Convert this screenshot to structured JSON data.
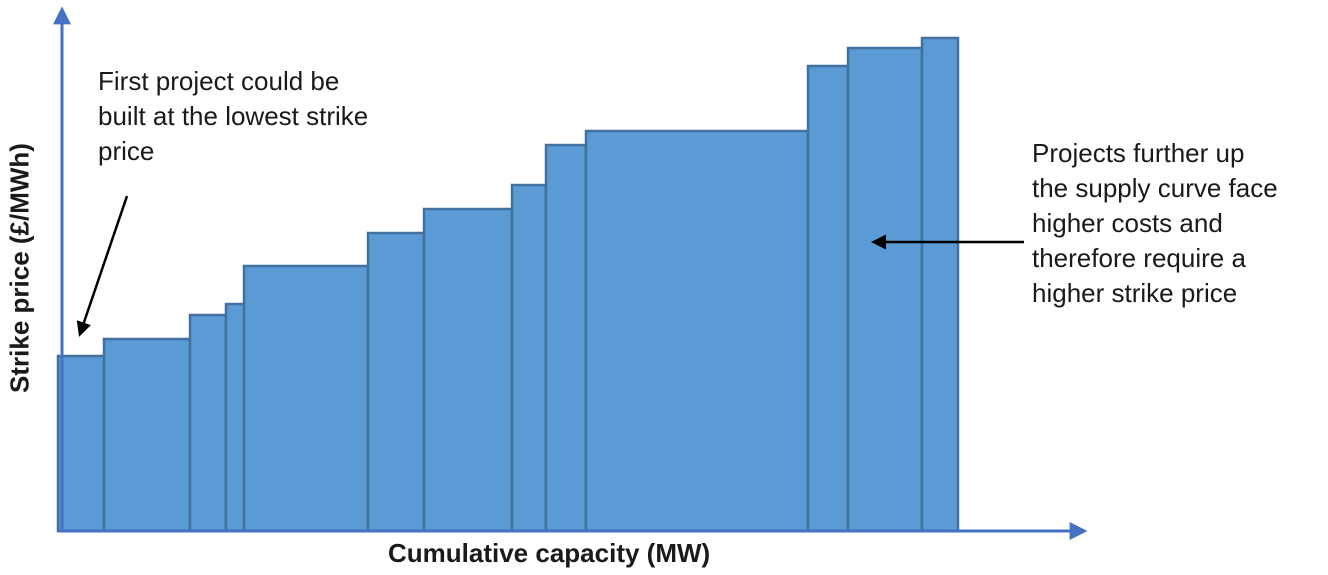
{
  "chart_data": {
    "type": "bar",
    "subtype": "supply-curve",
    "title": "",
    "xlabel": "Cumulative capacity (MW)",
    "ylabel": "Strike price (£/MWh)",
    "axis_ticks": "none",
    "grid": false,
    "legend": "none",
    "colors": {
      "bar_fill": "#5b9bd5",
      "bar_stroke": "#41719c",
      "axis": "#4472c4",
      "arrow": "#000000"
    },
    "units_note": "relative scale (axes unlabeled numerically)",
    "bars": [
      {
        "x_start": 0,
        "width": 46,
        "height": 175
      },
      {
        "x_start": 46,
        "width": 86,
        "height": 192
      },
      {
        "x_start": 132,
        "width": 36,
        "height": 216
      },
      {
        "x_start": 168,
        "width": 18,
        "height": 227
      },
      {
        "x_start": 186,
        "width": 124,
        "height": 265
      },
      {
        "x_start": 310,
        "width": 56,
        "height": 298
      },
      {
        "x_start": 366,
        "width": 88,
        "height": 322
      },
      {
        "x_start": 454,
        "width": 34,
        "height": 346
      },
      {
        "x_start": 488,
        "width": 40,
        "height": 386
      },
      {
        "x_start": 528,
        "width": 222,
        "height": 400
      },
      {
        "x_start": 750,
        "width": 40,
        "height": 465
      },
      {
        "x_start": 790,
        "width": 74,
        "height": 483
      },
      {
        "x_start": 864,
        "width": 36,
        "height": 493
      }
    ],
    "annotations": [
      {
        "id": "left",
        "lines": [
          "First project could be",
          "built at the lowest strike",
          "price"
        ],
        "points_to": "first bar"
      },
      {
        "id": "right",
        "lines": [
          "Projects further up",
          "the supply curve face",
          "higher costs and",
          "therefore require a",
          "higher strike price"
        ],
        "points_to": "highest-cost bars"
      }
    ]
  }
}
